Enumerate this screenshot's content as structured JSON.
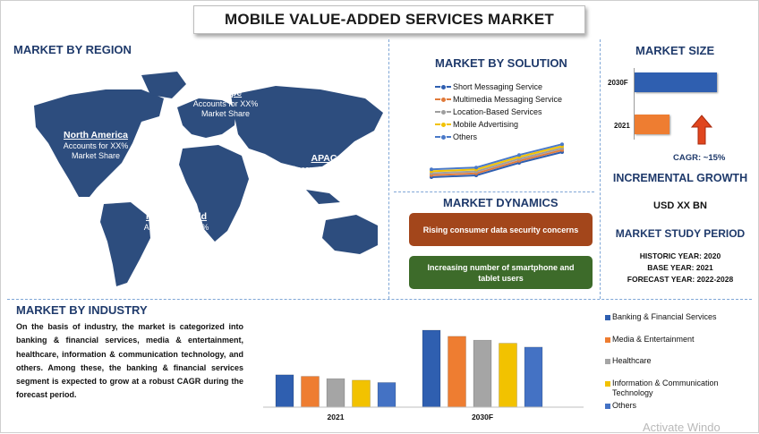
{
  "title": "MOBILE VALUE-ADDED SERVICES MARKET",
  "region": {
    "heading": "MARKET BY REGION",
    "callouts": [
      {
        "name": "Europe",
        "line1": "Accounts for XX%",
        "line2": "Market Share",
        "color": "#b5562a"
      },
      {
        "name": "North America",
        "line1": "Accounts for XX%",
        "line2": "Market Share",
        "color": "#c0202a"
      },
      {
        "name": "APAC",
        "line1": "Accounts for XX%",
        "line2": "Market Share",
        "color": "#3f5330"
      },
      {
        "name": "Rest of World",
        "line1": "Accounts for XX%",
        "line2": "Market Share",
        "color": "#17326b"
      }
    ]
  },
  "solution": {
    "heading": "MARKET BY SOLUTION",
    "items": [
      {
        "label": "Short Messaging Service",
        "color": "#2f5fb0"
      },
      {
        "label": "Multimedia Messaging Service",
        "color": "#e07a3a"
      },
      {
        "label": "Location-Based Services",
        "color": "#9e9e9e"
      },
      {
        "label": "Mobile Advertising",
        "color": "#f2c200"
      },
      {
        "label": "Others",
        "color": "#4a79c8"
      }
    ]
  },
  "dynamics": {
    "heading": "MARKET DYNAMICS",
    "items": [
      {
        "label": "Rising consumer data security concerns",
        "color": "#a3461b"
      },
      {
        "label": "Increasing number of smartphone and tablet users",
        "color": "#3d6b2a"
      }
    ]
  },
  "size": {
    "heading": "MARKET SIZE",
    "bars": [
      {
        "label": "2030F",
        "value": 1.0,
        "color": "#2f5fb0"
      },
      {
        "label": "2021",
        "value": 0.42,
        "color": "#ee7d31"
      }
    ],
    "cagr": "CAGR:  ~15%",
    "arrow_color": "#e0461e"
  },
  "growth": {
    "heading": "INCREMENTAL GROWTH",
    "value": "USD XX BN"
  },
  "study": {
    "heading": "MARKET STUDY PERIOD",
    "lines": [
      "HISTORIC YEAR: 2020",
      "BASE YEAR: 2021",
      "FORECAST YEAR: 2022-2028"
    ]
  },
  "industry": {
    "heading": "MARKET BY INDUSTRY",
    "paragraph": "On the basis of industry, the market is categorized into banking & financial services, media & entertainment, healthcare, information & communication technology, and others. Among these, the banking & financial services segment is expected to grow at a robust CAGR during the forecast period.",
    "legend": [
      {
        "label": "Banking & Financial Services",
        "color": "#2f5fb0"
      },
      {
        "label": "Media & Entertainment",
        "color": "#ee7d31"
      },
      {
        "label": "Healthcare",
        "color": "#a5a5a5"
      },
      {
        "label": "Information & Communication Technology",
        "color": "#f2c200"
      },
      {
        "label": "Others",
        "color": "#4472c4"
      }
    ]
  },
  "chart_data": {
    "type": "bar",
    "categories": [
      "2021",
      "2030F"
    ],
    "series": [
      {
        "name": "Banking & Financial Services",
        "values": [
          42,
          100
        ]
      },
      {
        "name": "Media & Entertainment",
        "values": [
          40,
          92
        ]
      },
      {
        "name": "Healthcare",
        "values": [
          37,
          87
        ]
      },
      {
        "name": "Information & Communication Technology",
        "values": [
          35,
          83
        ]
      },
      {
        "name": "Others",
        "values": [
          32,
          78
        ]
      }
    ],
    "xlabel": "",
    "ylabel": "",
    "grid": false,
    "legend": "right"
  },
  "watermark": "Activate Windo"
}
